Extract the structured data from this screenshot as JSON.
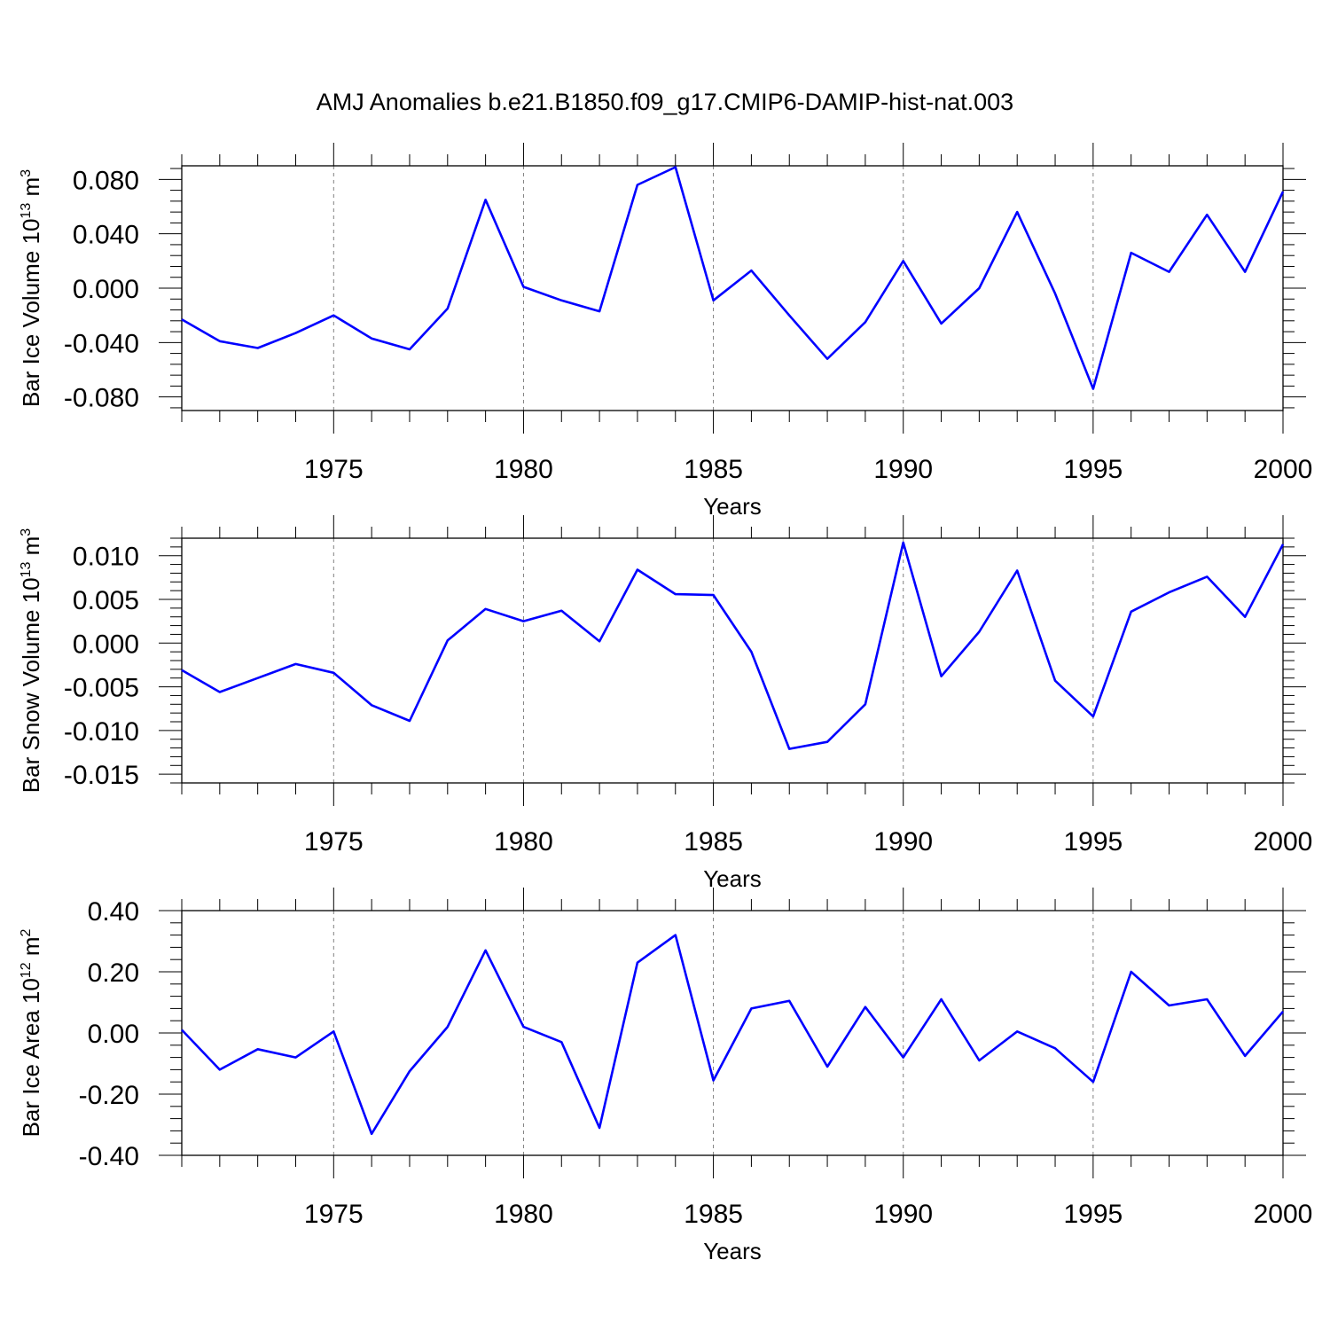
{
  "figure": {
    "title": "AMJ Anomalies b.e21.B1850.f09_g17.CMIP6-DAMIP-hist-nat.003",
    "line_color": "#0000ff",
    "grid_color": "#808080"
  },
  "chart_data": [
    {
      "type": "line",
      "title": "",
      "xlabel": "Years",
      "ylabel": {
        "text": "Bar Ice Volume 10",
        "exp": "13",
        "unit": " m",
        "unit_exp": "3"
      },
      "xlim": [
        1971,
        2000
      ],
      "ylim": [
        -0.09,
        0.09
      ],
      "yticks": [
        -0.08,
        -0.04,
        0.0,
        0.04,
        0.08
      ],
      "ytick_labels": [
        "-0.080",
        "-0.040",
        "0.000",
        "0.040",
        "0.080"
      ],
      "xticks": [
        1975,
        1980,
        1985,
        1990,
        1995,
        2000
      ],
      "xtick_labels": [
        "1975",
        "1980",
        "1985",
        "1990",
        "1995",
        "2000"
      ],
      "x": [
        1971,
        1972,
        1973,
        1974,
        1975,
        1976,
        1977,
        1978,
        1979,
        1980,
        1981,
        1982,
        1983,
        1984,
        1985,
        1986,
        1987,
        1988,
        1989,
        1990,
        1991,
        1992,
        1993,
        1994,
        1995,
        1996,
        1997,
        1998,
        1999,
        2000
      ],
      "values": [
        -0.023,
        -0.039,
        -0.044,
        -0.033,
        -0.02,
        -0.037,
        -0.045,
        -0.015,
        0.065,
        0.001,
        -0.009,
        -0.017,
        0.076,
        0.089,
        -0.009,
        0.013,
        -0.02,
        -0.052,
        -0.025,
        0.02,
        -0.026,
        0.0,
        0.056,
        -0.004,
        -0.074,
        0.026,
        0.012,
        0.054,
        0.012,
        0.071
      ]
    },
    {
      "type": "line",
      "title": "",
      "xlabel": "Years",
      "ylabel": {
        "text": "Bar Snow Volume 10",
        "exp": "13",
        "unit": " m",
        "unit_exp": "3"
      },
      "xlim": [
        1971,
        2000
      ],
      "ylim": [
        -0.016,
        0.012
      ],
      "yticks": [
        -0.015,
        -0.01,
        -0.005,
        0.0,
        0.005,
        0.01
      ],
      "ytick_labels": [
        "-0.015",
        "-0.010",
        "-0.005",
        "0.000",
        "0.005",
        "0.010"
      ],
      "xticks": [
        1975,
        1980,
        1985,
        1990,
        1995,
        2000
      ],
      "xtick_labels": [
        "1975",
        "1980",
        "1985",
        "1990",
        "1995",
        "2000"
      ],
      "x": [
        1971,
        1972,
        1973,
        1974,
        1975,
        1976,
        1977,
        1978,
        1979,
        1980,
        1981,
        1982,
        1983,
        1984,
        1985,
        1986,
        1987,
        1988,
        1989,
        1990,
        1991,
        1992,
        1993,
        1994,
        1995,
        1996,
        1997,
        1998,
        1999,
        2000
      ],
      "values": [
        -0.0031,
        -0.0056,
        -0.004,
        -0.0024,
        -0.0034,
        -0.0071,
        -0.0089,
        0.0003,
        0.0039,
        0.0025,
        0.0037,
        0.0002,
        0.0084,
        0.0056,
        0.0055,
        -0.001,
        -0.0121,
        -0.0113,
        -0.007,
        0.0115,
        -0.0038,
        0.0013,
        0.0083,
        -0.0043,
        -0.0084,
        0.0036,
        0.0058,
        0.0076,
        0.003,
        0.0113
      ]
    },
    {
      "type": "line",
      "title": "",
      "xlabel": "Years",
      "ylabel": {
        "text": "Bar Ice Area 10",
        "exp": "12",
        "unit": " m",
        "unit_exp": "2"
      },
      "xlim": [
        1971,
        2000
      ],
      "ylim": [
        -0.4,
        0.4
      ],
      "yticks": [
        -0.4,
        -0.2,
        0.0,
        0.2,
        0.4
      ],
      "ytick_labels": [
        "-0.40",
        "-0.20",
        "0.00",
        "0.20",
        "0.40"
      ],
      "xticks": [
        1975,
        1980,
        1985,
        1990,
        1995,
        2000
      ],
      "xtick_labels": [
        "1975",
        "1980",
        "1985",
        "1990",
        "1995",
        "2000"
      ],
      "x": [
        1971,
        1972,
        1973,
        1974,
        1975,
        1976,
        1977,
        1978,
        1979,
        1980,
        1981,
        1982,
        1983,
        1984,
        1985,
        1986,
        1987,
        1988,
        1989,
        1990,
        1991,
        1992,
        1993,
        1994,
        1995,
        1996,
        1997,
        1998,
        1999,
        2000
      ],
      "values": [
        0.01,
        -0.12,
        -0.053,
        -0.08,
        0.005,
        -0.33,
        -0.125,
        0.02,
        0.27,
        0.02,
        -0.03,
        -0.31,
        0.23,
        0.32,
        -0.155,
        0.08,
        0.105,
        -0.11,
        0.085,
        -0.08,
        0.11,
        -0.09,
        0.005,
        -0.05,
        -0.16,
        0.2,
        0.09,
        0.11,
        -0.075,
        0.07
      ]
    }
  ]
}
